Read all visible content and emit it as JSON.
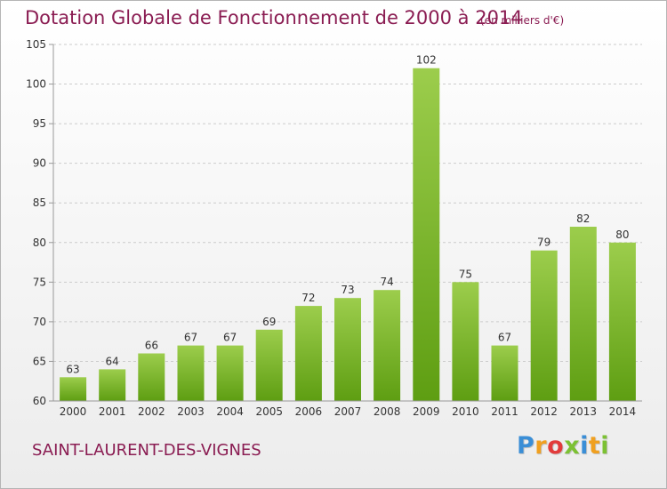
{
  "title": "Dotation Globale de Fonctionnement de 2000 à 2014",
  "subtitle": "(en milliers d'€)",
  "commune": "SAINT-LAURENT-DES-VIGNES",
  "logo": {
    "letters": [
      {
        "ch": "P",
        "color": "#3a8ed6"
      },
      {
        "ch": "r",
        "color": "#f0a020"
      },
      {
        "ch": "o",
        "color": "#e23b3b"
      },
      {
        "ch": "x",
        "color": "#7cc133"
      },
      {
        "ch": "i",
        "color": "#3a8ed6"
      },
      {
        "ch": "t",
        "color": "#f0a020"
      },
      {
        "ch": "i",
        "color": "#7cc133"
      }
    ]
  },
  "colors": {
    "bar_top": "#9ccd4c",
    "bar_bottom": "#5e9e12",
    "accent": "#8a1c52",
    "grid": "#cccccc"
  },
  "chart_data": {
    "type": "bar",
    "title": "Dotation Globale de Fonctionnement de 2000 à 2014",
    "subtitle": "(en milliers d'€)",
    "xlabel": "",
    "ylabel": "",
    "categories": [
      "2000",
      "2001",
      "2002",
      "2003",
      "2004",
      "2005",
      "2006",
      "2007",
      "2008",
      "2009",
      "2010",
      "2011",
      "2012",
      "2013",
      "2014"
    ],
    "values": [
      63,
      64,
      66,
      67,
      67,
      69,
      72,
      73,
      74,
      102,
      75,
      67,
      79,
      82,
      80
    ],
    "ylim": [
      60,
      105
    ],
    "yticks": [
      60,
      65,
      70,
      75,
      80,
      85,
      90,
      95,
      100,
      105
    ],
    "grid": "dashed horizontal"
  }
}
